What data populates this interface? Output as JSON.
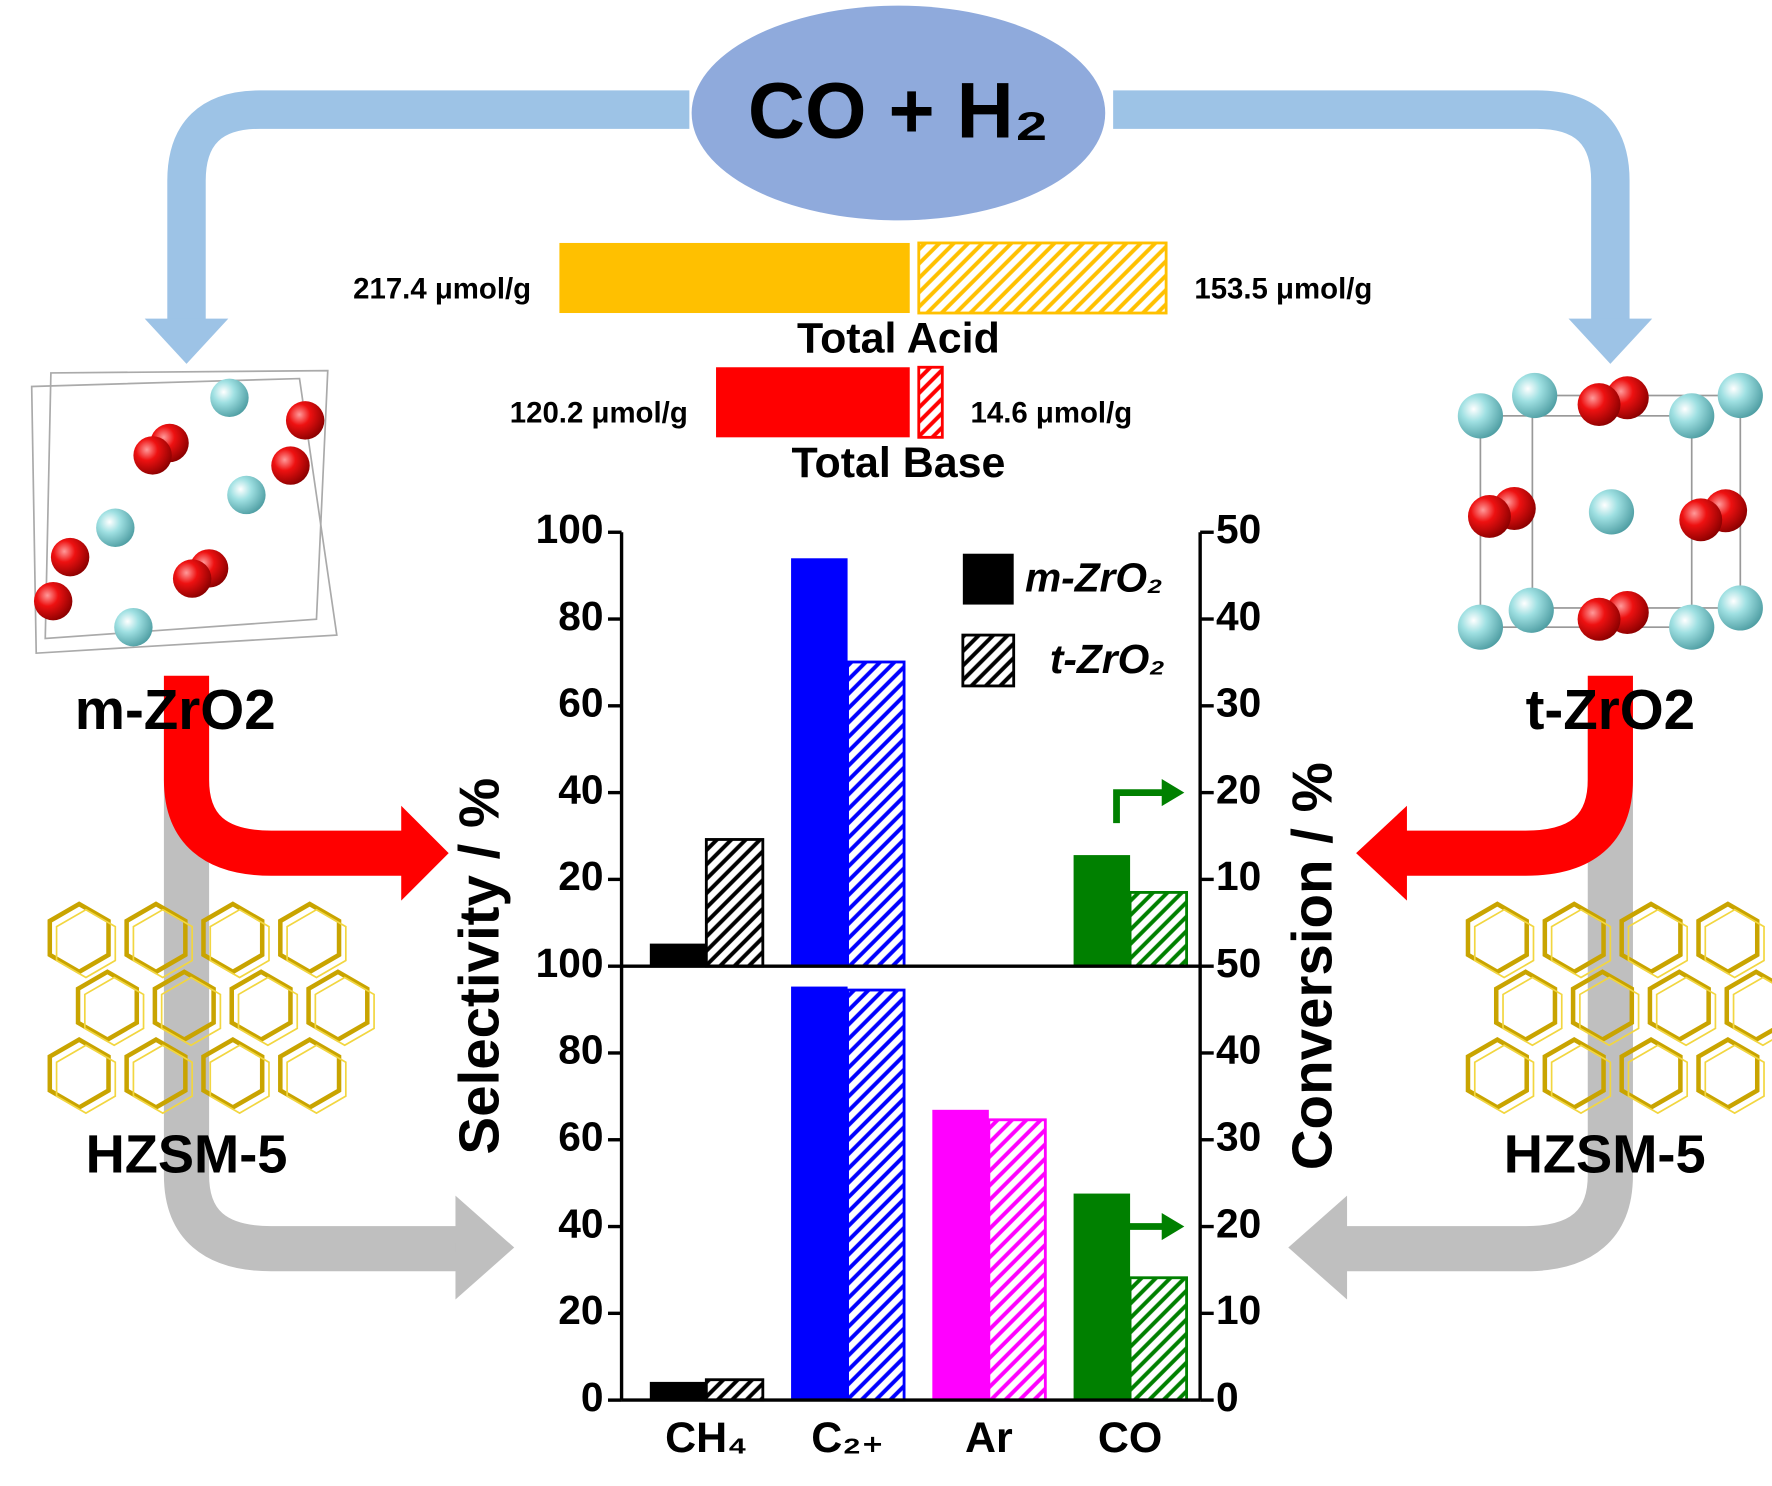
{
  "labels": {
    "reactant": "CO + H₂",
    "left_catalyst": "m-ZrO2",
    "right_catalyst": "t-ZrO2",
    "left_zeolite": "HZSM-5",
    "right_zeolite": "HZSM-5"
  },
  "chart_data": [
    {
      "type": "diverging-bar",
      "categories": [
        "Total Acid",
        "Total Base"
      ],
      "colors": [
        "#FFC000",
        "#FF0000"
      ],
      "series": [
        {
          "pattern": "solid",
          "values": [
            217.4,
            120.2
          ],
          "value_labels": [
            "217.4 μmol/g",
            "120.2 μmol/g"
          ]
        },
        {
          "pattern": "hatch",
          "values": [
            153.5,
            14.6
          ],
          "value_labels": [
            "153.5 μmol/g",
            "14.6 μmol/g"
          ]
        }
      ]
    },
    {
      "type": "bar",
      "categories": [
        null,
        null,
        null,
        null
      ],
      "category_colors": [
        "#000000",
        "#0000FF",
        "#FF00FF",
        "#008000"
      ],
      "category_axes": [
        "y",
        "y",
        "y",
        "y2"
      ],
      "series": [
        {
          "name": "m-ZrO₂",
          "pattern": "solid",
          "values": [
            5.2,
            94,
            null,
            12.8
          ]
        },
        {
          "name": "t-ZrO₂",
          "pattern": "hatch",
          "values": [
            29.2,
            70.1,
            null,
            8.5
          ]
        }
      ],
      "ylim": [
        0,
        100
      ],
      "yticks": [
        20,
        40,
        60,
        80,
        100
      ],
      "y2lim": [
        0,
        50
      ],
      "y2ticks": [
        10,
        20,
        30,
        40,
        50
      ],
      "ylabel": "Selectivity / %",
      "y2label": "Conversion / %",
      "legend": "top-right"
    },
    {
      "type": "bar",
      "categories": [
        "CH₄",
        "C₂₊",
        "Ar",
        "CO"
      ],
      "category_colors": [
        "#000000",
        "#0000FF",
        "#FF00FF",
        "#008000"
      ],
      "category_axes": [
        "y",
        "y",
        "y",
        "y2"
      ],
      "series": [
        {
          "pattern": "solid",
          "values": [
            4.2,
            95.3,
            66.9,
            23.8
          ]
        },
        {
          "pattern": "hatch",
          "values": [
            4.7,
            94.5,
            64.6,
            14.1
          ]
        }
      ],
      "ylim": [
        0,
        100
      ],
      "yticks": [
        0,
        20,
        40,
        60,
        80,
        100
      ],
      "y2lim": [
        0,
        50
      ],
      "y2ticks": [
        0,
        10,
        20,
        30,
        40,
        50
      ]
    }
  ]
}
